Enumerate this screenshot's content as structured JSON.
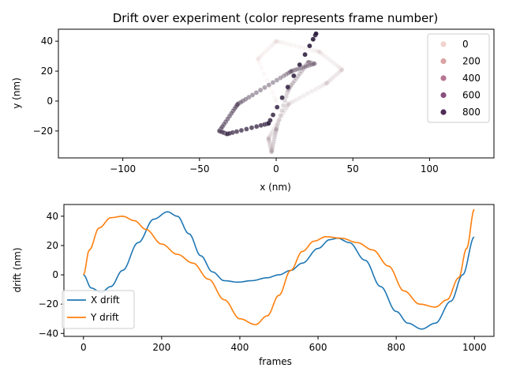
{
  "chart_data": [
    {
      "type": "scatter",
      "title": "Drift over experiment (color represents frame number)",
      "xlabel": "x (nm)",
      "ylabel": "y (nm)",
      "xlim": [
        -142,
        142
      ],
      "ylim": [
        -38,
        48
      ],
      "xticks": [
        -100,
        -50,
        0,
        50,
        100
      ],
      "yticks": [
        -20,
        0,
        20,
        40
      ],
      "grid": false,
      "color_scale": {
        "min": 0,
        "max": 1000,
        "low": "#edd1cb",
        "high": "#2d1e3e"
      },
      "legend": {
        "position": "top-right",
        "entries": [
          {
            "label": "0",
            "value": 0,
            "color": "#efd3cd"
          },
          {
            "label": "200",
            "value": 200,
            "color": "#d9a3a4"
          },
          {
            "label": "400",
            "value": 400,
            "color": "#b87593"
          },
          {
            "label": "600",
            "value": 600,
            "color": "#8a4e7f"
          },
          {
            "label": "800",
            "value": 800,
            "color": "#4f2b57"
          }
        ]
      },
      "keyframes": [
        {
          "frame": 0,
          "x": 0,
          "y": 0
        },
        {
          "frame": 40,
          "x": -12,
          "y": 28
        },
        {
          "frame": 100,
          "x": 0,
          "y": 40
        },
        {
          "frame": 160,
          "x": 28,
          "y": 33
        },
        {
          "frame": 215,
          "x": 43,
          "y": 21
        },
        {
          "frame": 270,
          "x": 33,
          "y": 12
        },
        {
          "frame": 330,
          "x": 8,
          "y": -2
        },
        {
          "frame": 395,
          "x": -5,
          "y": -25
        },
        {
          "frame": 440,
          "x": -3,
          "y": -34
        },
        {
          "frame": 500,
          "x": 0,
          "y": -19
        },
        {
          "frame": 550,
          "x": 8,
          "y": 8
        },
        {
          "frame": 620,
          "x": 21,
          "y": 26
        },
        {
          "frame": 650,
          "x": 25,
          "y": 25
        },
        {
          "frame": 720,
          "x": 10,
          "y": 20
        },
        {
          "frame": 800,
          "x": -25,
          "y": -2
        },
        {
          "frame": 860,
          "x": -37,
          "y": -20
        },
        {
          "frame": 900,
          "x": -32,
          "y": -22
        },
        {
          "frame": 950,
          "x": -5,
          "y": -15
        },
        {
          "frame": 1000,
          "x": 26,
          "y": 45
        }
      ]
    },
    {
      "type": "line",
      "xlabel": "frames",
      "ylabel": "drift (nm)",
      "xlim": [
        -50,
        1050
      ],
      "ylim": [
        -42,
        48
      ],
      "xticks": [
        0,
        200,
        400,
        600,
        800,
        1000
      ],
      "yticks": [
        -40,
        -20,
        0,
        20,
        40
      ],
      "grid": false,
      "legend": {
        "position": "bottom-left"
      },
      "series": [
        {
          "name": "X drift",
          "color": "#1f77b4",
          "x": [
            0,
            20,
            45,
            70,
            100,
            140,
            180,
            215,
            240,
            270,
            300,
            330,
            360,
            395,
            430,
            470,
            500,
            530,
            560,
            600,
            630,
            650,
            680,
            720,
            760,
            800,
            830,
            865,
            900,
            940,
            970,
            1000
          ],
          "y": [
            0,
            -9,
            -12,
            -8,
            3,
            22,
            38,
            43,
            40,
            28,
            13,
            2,
            -4,
            -5,
            -4,
            -2,
            0,
            3,
            8,
            18,
            24,
            25,
            22,
            10,
            -8,
            -25,
            -33,
            -37,
            -33,
            -18,
            0,
            26
          ]
        },
        {
          "name": "Y drift",
          "color": "#ff7f0e",
          "x": [
            0,
            15,
            40,
            70,
            100,
            130,
            160,
            200,
            240,
            280,
            320,
            360,
            400,
            440,
            470,
            500,
            530,
            560,
            590,
            620,
            660,
            700,
            740,
            780,
            820,
            860,
            900,
            930,
            960,
            980,
            1000
          ],
          "y": [
            0,
            17,
            32,
            39,
            40,
            37,
            31,
            21,
            14,
            8,
            -3,
            -17,
            -30,
            -34,
            -28,
            -14,
            3,
            16,
            23,
            26,
            25,
            22,
            17,
            6,
            -11,
            -20,
            -22,
            -17,
            -2,
            18,
            45
          ]
        }
      ]
    }
  ]
}
